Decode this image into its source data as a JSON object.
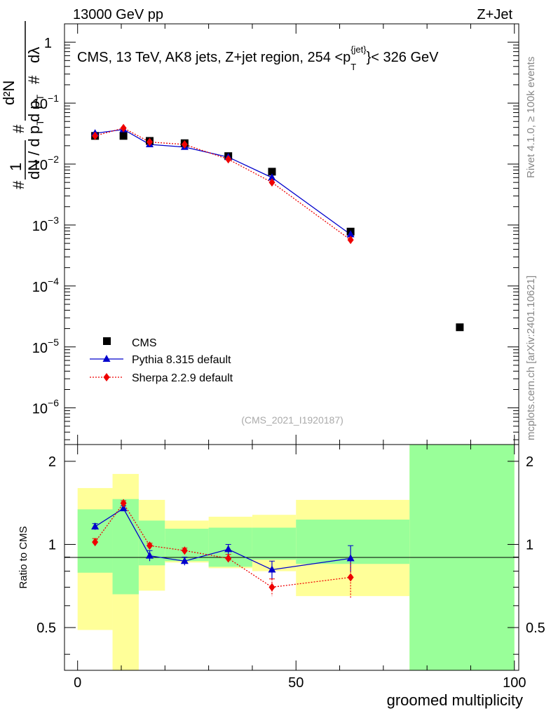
{
  "header": {
    "beam": "13000 GeV pp",
    "process": "Z+Jet",
    "title_main": "CMS, 13 TeV, AK8 jets, Z+jet region, 254 <p",
    "title_sub": "T",
    "title_sup": "{jet}",
    "title_end": "}< 326 GeV",
    "analysis_id": "(CMS_2021_I1920187)"
  },
  "side": {
    "rivet": "Rivet 4.1.0, ≥ 100k events",
    "site": "mcplots.cern.ch [arXiv:2401.10621]"
  },
  "ylabel_parts": {
    "hash": "#",
    "one": "1",
    "n": "N",
    "dpt": "d p",
    "t": "T",
    "d2n": "d²N",
    "dlambda": "dλ",
    "dnum": "d p",
    "prefix": "d"
  },
  "axis": {
    "xlabel": "groomed multiplicity",
    "ratio_ylabel": "Ratio to CMS",
    "x_ticks": [
      "0",
      "50",
      "100"
    ],
    "top_y_ticks": [
      {
        "base": "1",
        "exp": ""
      },
      {
        "base": "10",
        "exp": "−1"
      },
      {
        "base": "10",
        "exp": "−2"
      },
      {
        "base": "10",
        "exp": "−3"
      },
      {
        "base": "10",
        "exp": "−4"
      },
      {
        "base": "10",
        "exp": "−5"
      },
      {
        "base": "10",
        "exp": "−6"
      }
    ],
    "ratio_y_ticks": [
      "2",
      "1",
      "0.5"
    ]
  },
  "legend": {
    "cms": "CMS",
    "pythia": "Pythia 8.315 default",
    "sherpa": "Sherpa 2.2.9 default"
  },
  "colors": {
    "cms": "#000000",
    "pythia": "#0000cc",
    "sherpa": "#ee0000",
    "band_inner": "#99ff99",
    "band_outer": "#ffff99"
  },
  "chart_data": [
    {
      "type": "scatter",
      "title": "CMS, 13 TeV, AK8 jets, Z+jet region, 254 < p_T^{jet} < 326 GeV",
      "xlabel": "groomed multiplicity",
      "ylabel": "1/N dN/d lambda",
      "xlim": [
        -3,
        101
      ],
      "ylim": [
        2.5e-07,
        2.0
      ],
      "yscale": "log",
      "legend_position": "bottom-left",
      "series": [
        {
          "name": "CMS",
          "marker": "square",
          "x": [
            4,
            10.5,
            16.5,
            24.5,
            34.5,
            44.5,
            62.5,
            87.5
          ],
          "y": [
            0.029,
            0.029,
            0.024,
            0.022,
            0.0135,
            0.0075,
            0.00078,
            2.1e-05
          ]
        },
        {
          "name": "Pythia 8.315 default",
          "marker": "triangle",
          "x": [
            4,
            10.5,
            16.5,
            24.5,
            34.5,
            44.5,
            62.5
          ],
          "y": [
            0.032,
            0.037,
            0.021,
            0.019,
            0.013,
            0.006,
            0.0007
          ]
        },
        {
          "name": "Sherpa 2.2.9 default",
          "marker": "diamond",
          "x": [
            4,
            10.5,
            16.5,
            24.5,
            34.5,
            44.5,
            62.5
          ],
          "y": [
            0.029,
            0.039,
            0.023,
            0.021,
            0.012,
            0.005,
            0.00057
          ]
        }
      ]
    },
    {
      "type": "scatter",
      "title": "",
      "xlabel": "groomed multiplicity",
      "ylabel": "Ratio to CMS",
      "xlim": [
        -3,
        101
      ],
      "ylim": [
        0.35,
        2.3
      ],
      "yscale": "log",
      "bands": [
        {
          "x_low": 0,
          "x_high": 8,
          "inner": [
            0.79,
            1.34
          ],
          "outer": [
            0.49,
            1.6
          ]
        },
        {
          "x_low": 8,
          "x_high": 14,
          "inner": [
            0.66,
            1.46
          ],
          "outer": [
            0.3,
            1.8
          ]
        },
        {
          "x_low": 14,
          "x_high": 20,
          "inner": [
            0.84,
            1.22
          ],
          "outer": [
            0.68,
            1.45
          ]
        },
        {
          "x_low": 20,
          "x_high": 30,
          "inner": [
            0.87,
            1.14
          ],
          "outer": [
            0.86,
            1.22
          ]
        },
        {
          "x_low": 30,
          "x_high": 40,
          "inner": [
            0.83,
            1.15
          ],
          "outer": [
            0.82,
            1.26
          ]
        },
        {
          "x_low": 40,
          "x_high": 50,
          "inner": [
            0.88,
            1.15
          ],
          "outer": [
            0.8,
            1.28
          ]
        },
        {
          "x_low": 50,
          "x_high": 76,
          "inner": [
            0.85,
            1.23
          ],
          "outer": [
            0.65,
            1.45
          ]
        },
        {
          "x_low": 76,
          "x_high": 100,
          "inner": [
            0.3,
            2.5
          ],
          "outer": [
            0.3,
            2.5
          ]
        }
      ],
      "series": [
        {
          "name": "Pythia 8.315 default",
          "marker": "triangle",
          "x": [
            4,
            10.5,
            16.5,
            24.5,
            34.5,
            44.5,
            62.5
          ],
          "y": [
            1.16,
            1.35,
            0.91,
            0.87,
            0.96,
            0.81,
            0.89
          ],
          "err": [
            0.03,
            0.03,
            0.04,
            0.03,
            0.04,
            0.06,
            0.1
          ]
        },
        {
          "name": "Sherpa 2.2.9 default",
          "marker": "diamond",
          "x": [
            4,
            10.5,
            16.5,
            24.5,
            34.5,
            44.5,
            62.5
          ],
          "y": [
            1.02,
            1.41,
            0.99,
            0.95,
            0.89,
            0.7,
            0.76
          ],
          "err": [
            0.03,
            0.03,
            0.02,
            0.02,
            0.03,
            0.05,
            0.12
          ]
        }
      ]
    }
  ]
}
